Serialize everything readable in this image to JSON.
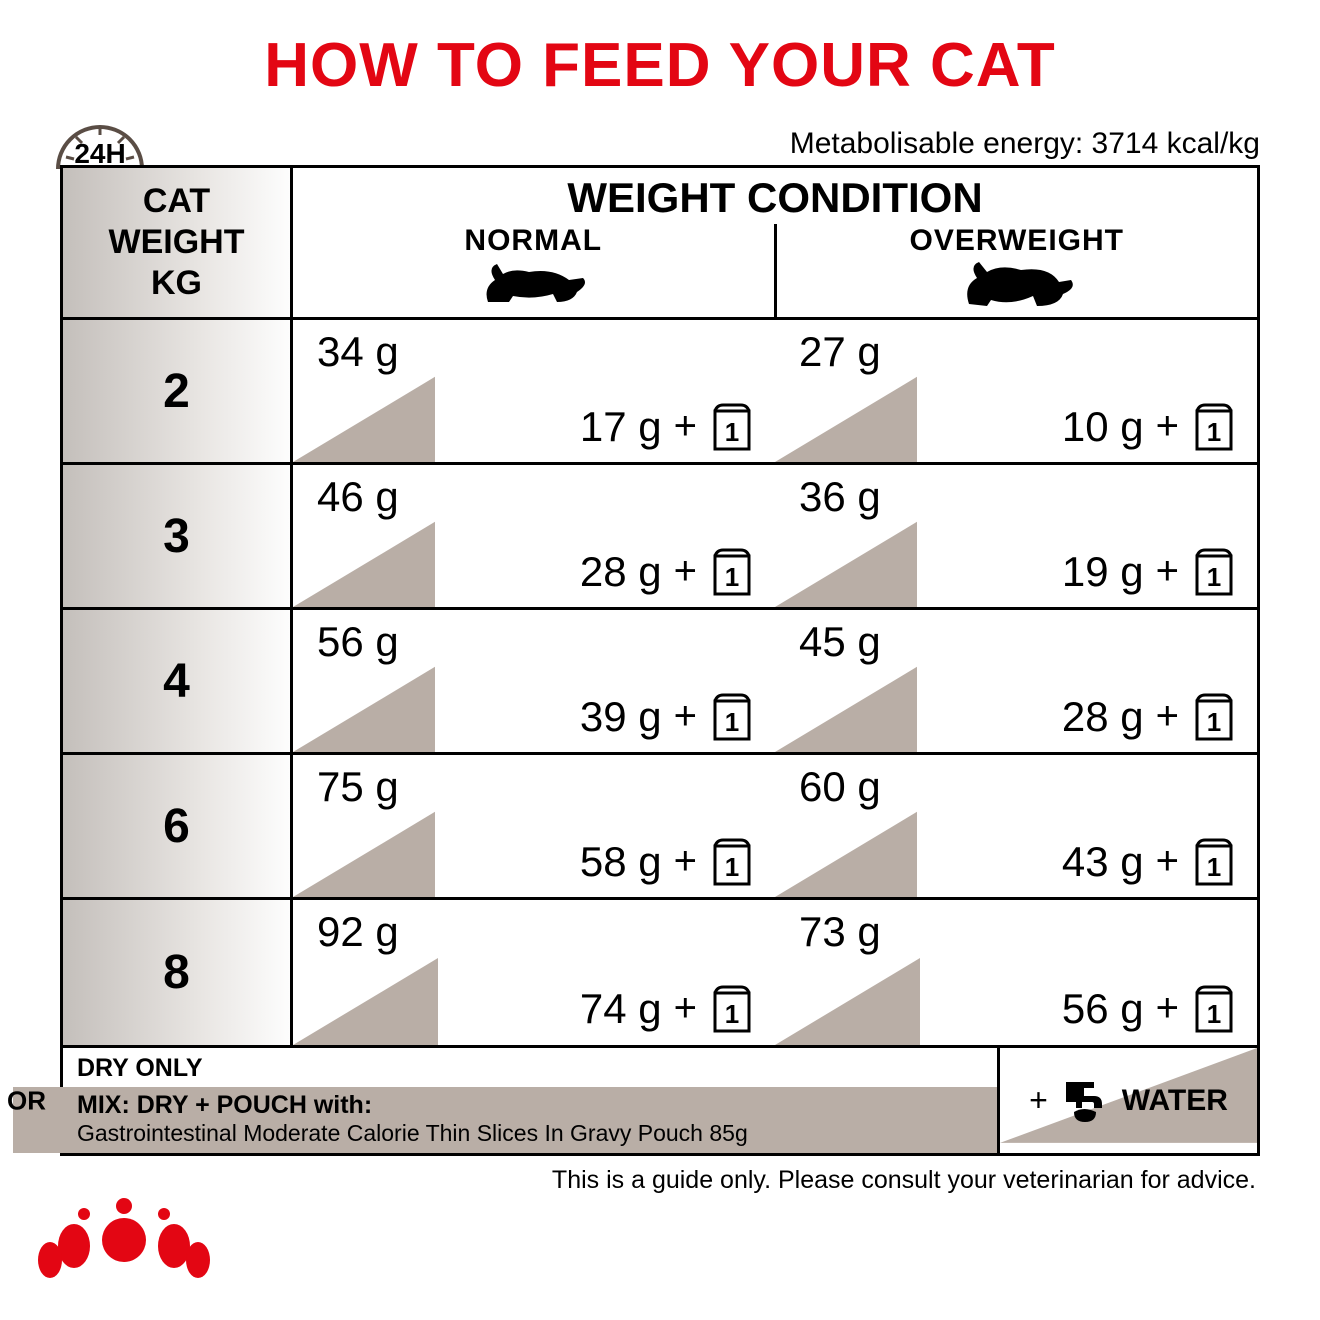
{
  "title": "HOW TO FEED YOUR CAT",
  "clock_label": "24H",
  "energy_text": "Metabolisable energy: 3714 kcal/kg",
  "header": {
    "cat_weight_line1": "CAT",
    "cat_weight_line2": "WEIGHT",
    "cat_weight_line3": "KG",
    "condition_title": "WEIGHT CONDITION",
    "normal_label": "NORMAL",
    "overweight_label": "OVERWEIGHT"
  },
  "pouch_count": "1",
  "rows": [
    {
      "kg": "2",
      "normal_dry": "34 g",
      "normal_mix": "17 g",
      "over_dry": "27 g",
      "over_mix": "10 g"
    },
    {
      "kg": "3",
      "normal_dry": "46 g",
      "normal_mix": "28 g",
      "over_dry": "36 g",
      "over_mix": "19 g"
    },
    {
      "kg": "4",
      "normal_dry": "56 g",
      "normal_mix": "39 g",
      "over_dry": "45 g",
      "over_mix": "28 g"
    },
    {
      "kg": "6",
      "normal_dry": "75 g",
      "normal_mix": "58 g",
      "over_dry": "60 g",
      "over_mix": "43 g"
    },
    {
      "kg": "8",
      "normal_dry": "92 g",
      "normal_mix": "74 g",
      "over_dry": "73 g",
      "over_mix": "56 g"
    }
  ],
  "legend": {
    "or": "OR",
    "dry_only": "DRY ONLY",
    "mix_label": "MIX: DRY + POUCH with:",
    "mix_product": "Gastrointestinal Moderate Calorie Thin Slices In Gravy Pouch 85g",
    "water": "WATER"
  },
  "disclaimer": "This is a guide only. Please consult your veterinarian for advice.",
  "colors": {
    "title": "#e30613",
    "wedge": "#b9aea6",
    "border": "#000000"
  }
}
